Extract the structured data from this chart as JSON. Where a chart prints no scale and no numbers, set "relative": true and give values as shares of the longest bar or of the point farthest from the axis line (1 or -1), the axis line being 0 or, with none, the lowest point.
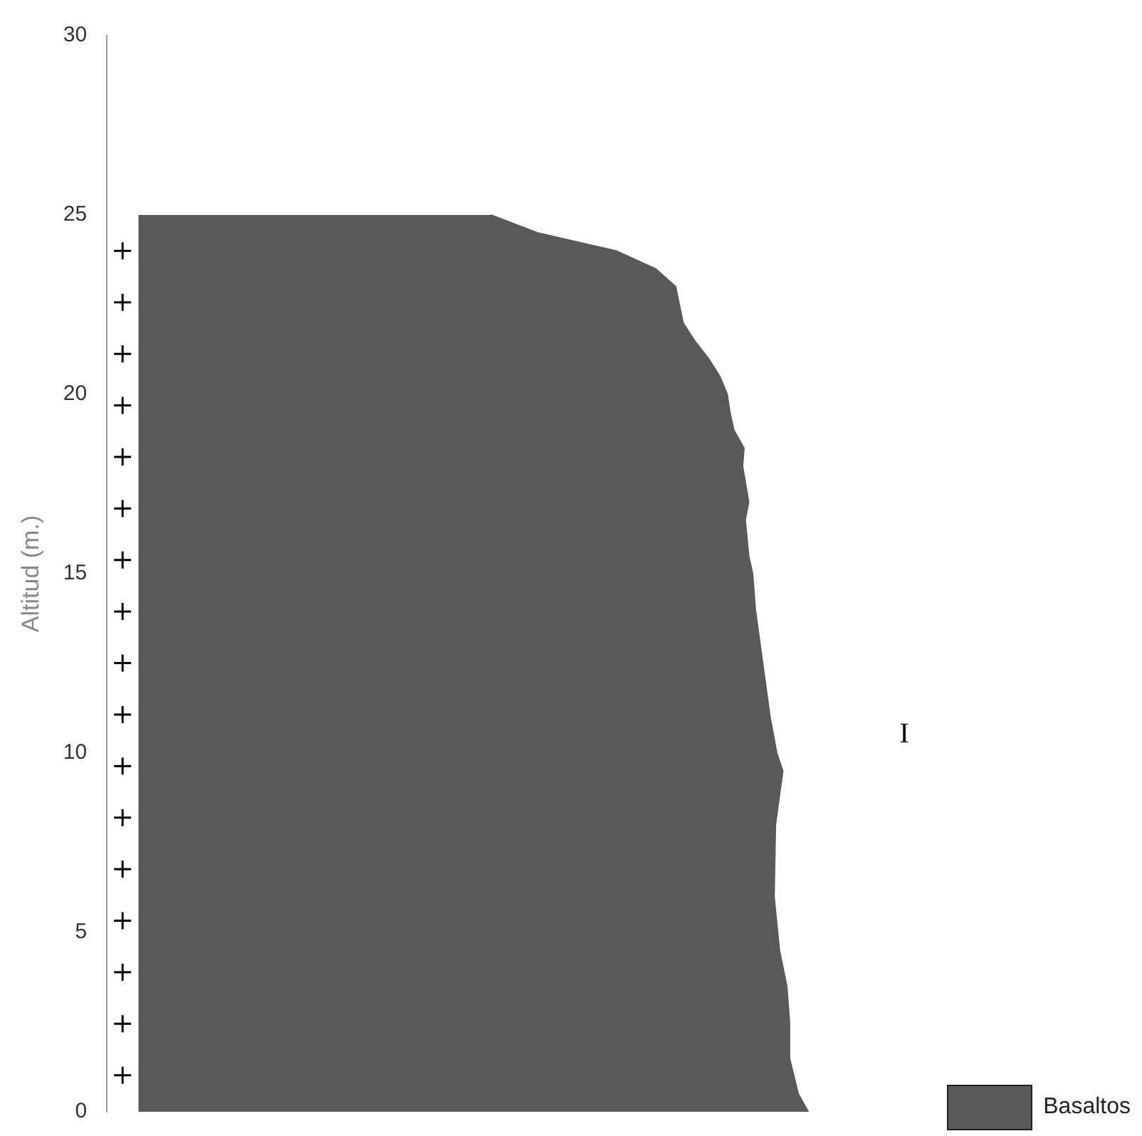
{
  "chart_data": {
    "type": "area",
    "orientation": "horizontal",
    "relative": true,
    "ylabel": "Altitud (m.)",
    "ylim": [
      0,
      30
    ],
    "yticks": [
      0,
      5,
      10,
      15,
      20,
      25,
      30
    ],
    "grid": false,
    "legend": "bottom right",
    "annotations": [
      "I"
    ],
    "x": [
      0,
      0.5,
      1.5,
      2.5,
      3.5,
      4.5,
      6,
      8,
      9.5,
      10,
      11,
      12.5,
      14,
      15,
      15.5,
      16.5,
      17,
      18,
      18.5,
      19,
      19.5,
      20,
      20.5,
      21,
      21.5,
      22,
      23,
      23.5,
      24,
      24.5,
      25
    ],
    "series": [
      {
        "name": "Basaltos",
        "color": "#595959",
        "values": [
          1.0,
          0.985,
          0.972,
          0.972,
          0.968,
          0.957,
          0.949,
          0.951,
          0.962,
          0.953,
          0.943,
          0.932,
          0.921,
          0.917,
          0.911,
          0.906,
          0.911,
          0.902,
          0.904,
          0.889,
          0.883,
          0.879,
          0.868,
          0.851,
          0.83,
          0.813,
          0.802,
          0.772,
          0.713,
          0.596,
          0.526
        ]
      }
    ]
  }
}
